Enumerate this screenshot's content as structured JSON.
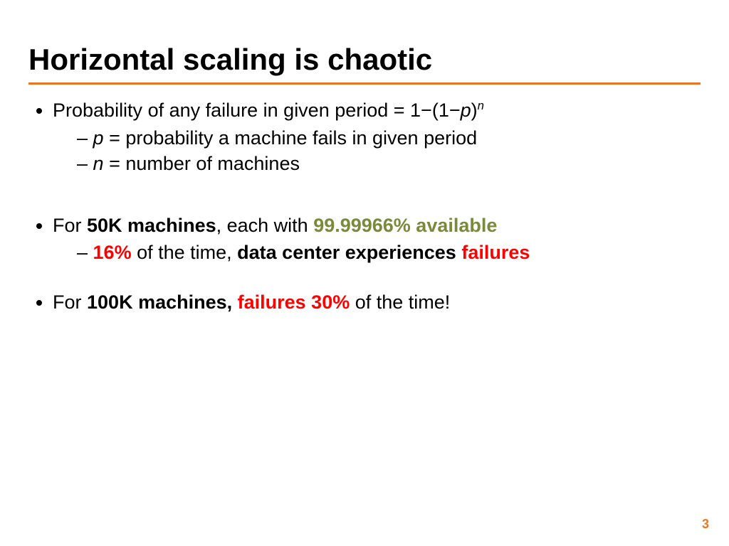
{
  "colors": {
    "accent_rule": "#e87722",
    "olive": "#7b8a3a",
    "red": "#ff0000",
    "pagenum": "#e87722",
    "text": "#000000",
    "background": "#ffffff"
  },
  "typography": {
    "title_fontsize_pt": 32,
    "body_fontsize_pt": 20,
    "title_weight": "bold",
    "family": "Arial"
  },
  "title": "Horizontal scaling is chaotic",
  "bullets": {
    "b1": {
      "text_a": "Probability of any failure in given period = 1−(1−",
      "p": "p",
      "text_b": ")",
      "n": "n",
      "sub1": {
        "var": "p",
        "eq": " = ",
        "rest": "probability a machine fails in given period"
      },
      "sub2": {
        "var": "n",
        "eq": " = ",
        "rest": "number of machines"
      }
    },
    "b2": {
      "a": "For ",
      "machines": "50K machines",
      "b": ", each with ",
      "avail": "99.99966% available",
      "sub": {
        "pct": "16%",
        "mid": " of the time, ",
        "dc": "data center experiences",
        "sp": " ",
        "fail": "failures"
      }
    },
    "b3": {
      "a": "For ",
      "machines": "100K machines,",
      "sp": " ",
      "fail": "failures 30%",
      "rest": " of the time!"
    }
  },
  "page_number": "3"
}
